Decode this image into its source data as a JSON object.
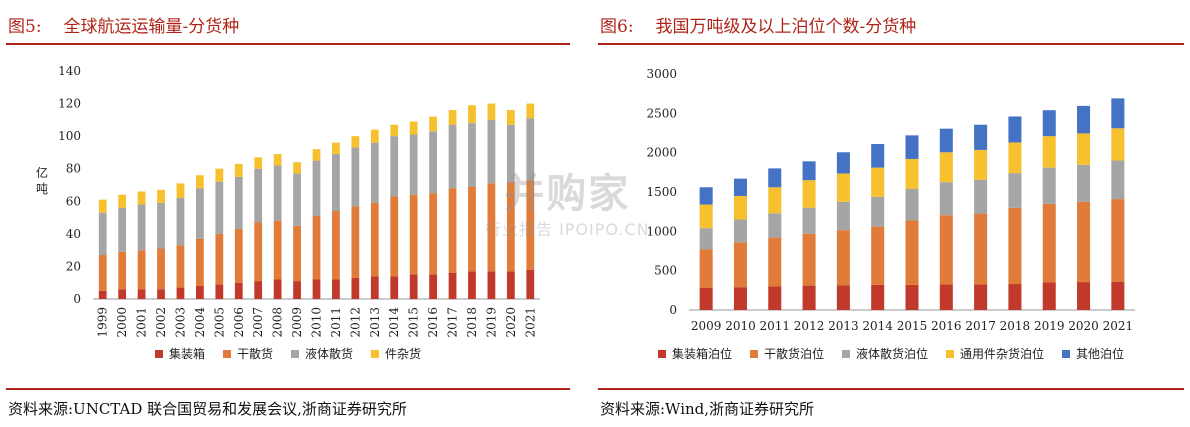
{
  "left": {
    "title_prefix": "图5:",
    "title_text": "全球航运运输量-分货种",
    "source": "资料来源:UNCTAD 联合国贸易和发展会议,浙商证券研究所",
    "ylabel": "亿吨"
  },
  "right": {
    "title_prefix": "图6:",
    "title_text": "我国万吨级及以上泊位个数-分货种",
    "source": "资料来源:Wind,浙商证券研究所"
  },
  "watermark": {
    "brand": "并购家",
    "slogan": "行业报告 IPOIPO.CN"
  },
  "chart_data": [
    {
      "type": "bar",
      "stacked": true,
      "title": "全球航运运输量-分货种",
      "ylabel": "亿吨",
      "ylim": [
        0,
        140
      ],
      "yticks": [
        0,
        20,
        40,
        60,
        80,
        100,
        120,
        140
      ],
      "grid": false,
      "legend_position": "bottom",
      "categories": [
        "1999",
        "2000",
        "2001",
        "2002",
        "2003",
        "2004",
        "2005",
        "2006",
        "2007",
        "2008",
        "2009",
        "2010",
        "2011",
        "2012",
        "2013",
        "2014",
        "2015",
        "2016",
        "2017",
        "2018",
        "2019",
        "2020",
        "2021"
      ],
      "series": [
        {
          "name": "集装箱",
          "color": "#c0392b",
          "values": [
            5,
            6,
            6,
            6,
            7,
            8,
            9,
            10,
            11,
            12,
            11,
            12,
            12,
            13,
            14,
            14,
            15,
            15,
            16,
            17,
            17,
            17,
            18
          ]
        },
        {
          "name": "干散货",
          "color": "#e07b39",
          "values": [
            22,
            23,
            24,
            25,
            26,
            29,
            31,
            33,
            36,
            36,
            34,
            39,
            42,
            44,
            45,
            49,
            49,
            50,
            52,
            52,
            54,
            55,
            55
          ]
        },
        {
          "name": "液体散货",
          "color": "#a5a5a5",
          "values": [
            26,
            27,
            28,
            28,
            29,
            31,
            32,
            32,
            33,
            34,
            32,
            34,
            35,
            36,
            37,
            37,
            37,
            38,
            39,
            39,
            39,
            35,
            38
          ]
        },
        {
          "name": "件杂货",
          "color": "#f6c02f",
          "values": [
            8,
            8,
            8,
            8,
            9,
            8,
            8,
            8,
            7,
            7,
            7,
            7,
            7,
            7,
            8,
            7,
            8,
            9,
            9,
            11,
            10,
            9,
            9
          ]
        }
      ]
    },
    {
      "type": "bar",
      "stacked": true,
      "title": "我国万吨级及以上泊位个数-分货种",
      "ylim": [
        0,
        3000
      ],
      "yticks": [
        0,
        500,
        1000,
        1500,
        2000,
        2500,
        3000
      ],
      "grid": false,
      "legend_position": "bottom",
      "categories": [
        "2009",
        "2010",
        "2011",
        "2012",
        "2013",
        "2014",
        "2015",
        "2016",
        "2017",
        "2018",
        "2019",
        "2020",
        "2021"
      ],
      "series": [
        {
          "name": "集装箱泊位",
          "color": "#c0392b",
          "values": [
            280,
            290,
            300,
            310,
            315,
            320,
            320,
            325,
            325,
            330,
            350,
            355,
            360
          ]
        },
        {
          "name": "干散货泊位",
          "color": "#e07b39",
          "values": [
            490,
            570,
            620,
            660,
            700,
            740,
            820,
            880,
            900,
            970,
            1000,
            1020,
            1050
          ]
        },
        {
          "name": "液体散货泊位",
          "color": "#a5a5a5",
          "values": [
            270,
            290,
            310,
            330,
            360,
            380,
            400,
            420,
            430,
            440,
            460,
            470,
            490
          ]
        },
        {
          "name": "通用件杂货泊位",
          "color": "#f6c02f",
          "values": [
            300,
            300,
            330,
            350,
            360,
            370,
            380,
            380,
            380,
            390,
            400,
            400,
            410
          ]
        },
        {
          "name": "其他泊位",
          "color": "#4472c4",
          "values": [
            220,
            220,
            240,
            240,
            270,
            300,
            300,
            300,
            320,
            330,
            330,
            350,
            380
          ]
        }
      ]
    }
  ]
}
